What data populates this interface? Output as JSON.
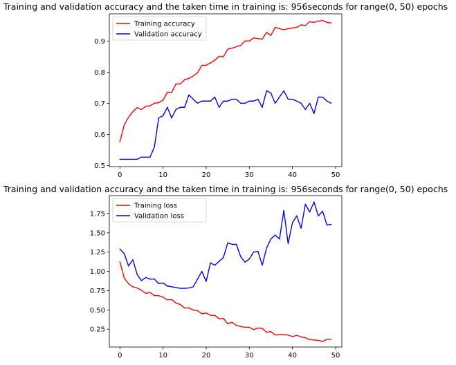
{
  "chart_data": [
    {
      "type": "line",
      "title": "Training and validation accuracy and the taken time in training is: 956seconds for range(0, 50) epochs",
      "xlabel": "",
      "ylabel": "",
      "xlim": [
        -2.45,
        51.45
      ],
      "ylim": [
        0.4965,
        0.9875
      ],
      "xticks": [
        0,
        10,
        20,
        30,
        40,
        50
      ],
      "xtick_labels": [
        "0",
        "10",
        "20",
        "30",
        "40",
        "50"
      ],
      "yticks": [
        0.5,
        0.6,
        0.7,
        0.8,
        0.9
      ],
      "ytick_labels": [
        "0.5",
        "0.6",
        "0.7",
        "0.8",
        "0.9"
      ],
      "grid": false,
      "legend_position": "top-left",
      "x": [
        0,
        1,
        2,
        3,
        4,
        5,
        6,
        7,
        8,
        9,
        10,
        11,
        12,
        13,
        14,
        15,
        16,
        17,
        18,
        19,
        20,
        21,
        22,
        23,
        24,
        25,
        26,
        27,
        28,
        29,
        30,
        31,
        32,
        33,
        34,
        35,
        36,
        37,
        38,
        39,
        40,
        41,
        42,
        43,
        44,
        45,
        46,
        47,
        48,
        49
      ],
      "series": [
        {
          "name": "Training accuracy",
          "color": "#ff0000",
          "values": [
            0.576,
            0.63,
            0.655,
            0.673,
            0.686,
            0.68,
            0.69,
            0.692,
            0.7,
            0.702,
            0.71,
            0.735,
            0.735,
            0.762,
            0.762,
            0.776,
            0.78,
            0.788,
            0.798,
            0.822,
            0.822,
            0.83,
            0.838,
            0.851,
            0.849,
            0.874,
            0.877,
            0.882,
            0.886,
            0.9,
            0.9,
            0.91,
            0.908,
            0.906,
            0.928,
            0.918,
            0.944,
            0.94,
            0.936,
            0.94,
            0.942,
            0.944,
            0.952,
            0.95,
            0.962,
            0.96,
            0.964,
            0.966,
            0.96,
            0.958
          ]
        },
        {
          "name": "Validation accuracy",
          "color": "#0000ff",
          "values": [
            0.52,
            0.52,
            0.52,
            0.52,
            0.52,
            0.527,
            0.527,
            0.527,
            0.56,
            0.653,
            0.66,
            0.687,
            0.653,
            0.68,
            0.687,
            0.687,
            0.727,
            0.713,
            0.7,
            0.707,
            0.707,
            0.707,
            0.72,
            0.687,
            0.707,
            0.707,
            0.713,
            0.713,
            0.7,
            0.7,
            0.707,
            0.707,
            0.713,
            0.687,
            0.74,
            0.733,
            0.7,
            0.72,
            0.74,
            0.713,
            0.713,
            0.707,
            0.7,
            0.68,
            0.7,
            0.667,
            0.72,
            0.72,
            0.707,
            0.7
          ]
        }
      ]
    },
    {
      "type": "line",
      "title": "Training and validation accuracy and the taken time in training is: 956seconds for range(0, 50) epochs",
      "xlabel": "",
      "ylabel": "",
      "xlim": [
        -2.45,
        51.45
      ],
      "ylim": [
        0.019,
        1.982
      ],
      "xticks": [
        0,
        10,
        20,
        30,
        40,
        50
      ],
      "xtick_labels": [
        "0",
        "10",
        "20",
        "30",
        "40",
        "50"
      ],
      "yticks": [
        0.25,
        0.5,
        0.75,
        1.0,
        1.25,
        1.5,
        1.75
      ],
      "ytick_labels": [
        "0.25",
        "0.50",
        "0.75",
        "1.00",
        "1.25",
        "1.50",
        "1.75"
      ],
      "grid": false,
      "legend_position": "top-left",
      "x": [
        0,
        1,
        2,
        3,
        4,
        5,
        6,
        7,
        8,
        9,
        10,
        11,
        12,
        13,
        14,
        15,
        16,
        17,
        18,
        19,
        20,
        21,
        22,
        23,
        24,
        25,
        26,
        27,
        28,
        29,
        30,
        31,
        32,
        33,
        34,
        35,
        36,
        37,
        38,
        39,
        40,
        41,
        42,
        43,
        44,
        45,
        46,
        47,
        48,
        49
      ],
      "series": [
        {
          "name": "Training loss",
          "color": "#ff0000",
          "values": [
            1.125,
            0.915,
            0.84,
            0.8,
            0.785,
            0.755,
            0.715,
            0.725,
            0.685,
            0.685,
            0.665,
            0.63,
            0.635,
            0.59,
            0.57,
            0.525,
            0.525,
            0.5,
            0.49,
            0.45,
            0.46,
            0.43,
            0.43,
            0.385,
            0.39,
            0.32,
            0.34,
            0.3,
            0.285,
            0.275,
            0.275,
            0.245,
            0.265,
            0.26,
            0.21,
            0.22,
            0.175,
            0.18,
            0.18,
            0.175,
            0.155,
            0.17,
            0.15,
            0.14,
            0.115,
            0.11,
            0.105,
            0.09,
            0.12,
            0.12
          ]
        },
        {
          "name": "Validation loss",
          "color": "#0000ff",
          "values": [
            1.29,
            1.23,
            1.07,
            1.15,
            0.96,
            0.88,
            0.92,
            0.9,
            0.9,
            0.84,
            0.85,
            0.81,
            0.8,
            0.79,
            0.78,
            0.78,
            0.785,
            0.8,
            0.9,
            1.0,
            0.87,
            1.11,
            1.08,
            1.13,
            1.18,
            1.37,
            1.35,
            1.35,
            1.19,
            1.12,
            1.16,
            1.25,
            1.26,
            1.08,
            1.3,
            1.42,
            1.47,
            1.42,
            1.79,
            1.36,
            1.63,
            1.72,
            1.56,
            1.87,
            1.77,
            1.9,
            1.72,
            1.78,
            1.6,
            1.61
          ]
        }
      ]
    }
  ]
}
